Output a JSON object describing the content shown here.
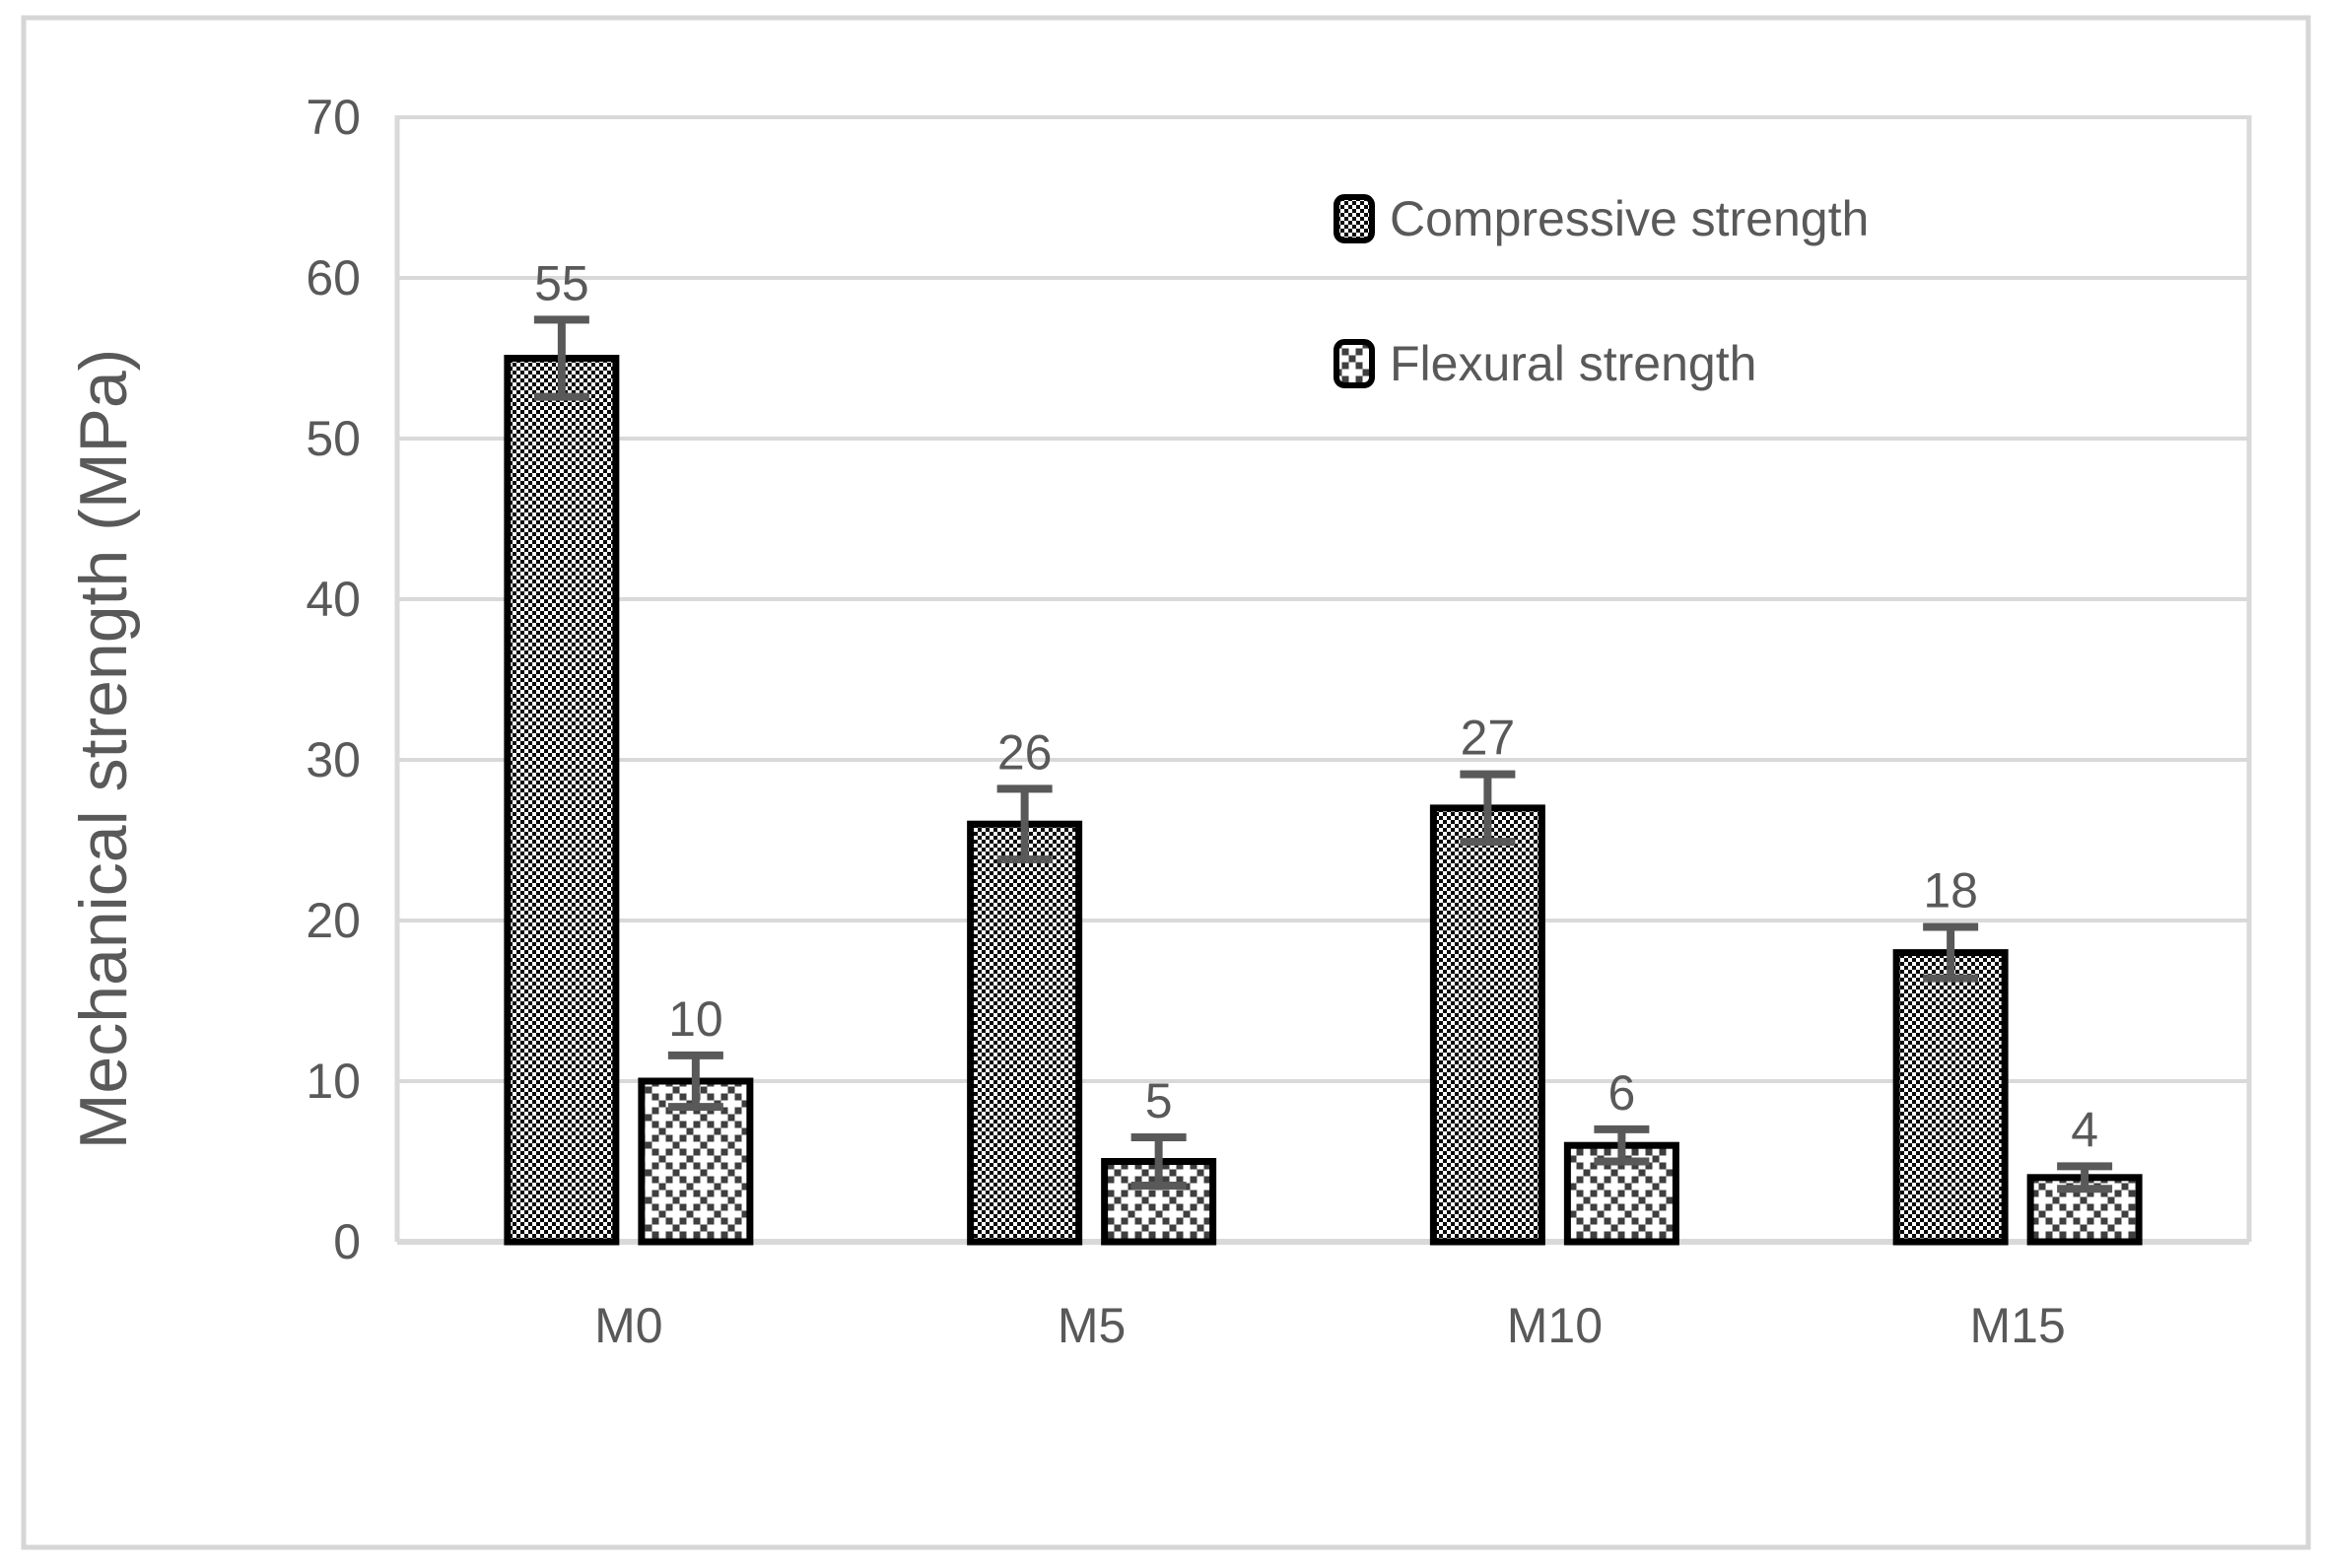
{
  "chart_data": {
    "type": "bar",
    "title": "",
    "xlabel": "",
    "ylabel": "Mechanical strength (MPa)",
    "ylim": [
      0,
      70
    ],
    "ytick_step": 10,
    "yticks": [
      0,
      10,
      20,
      30,
      40,
      50,
      60,
      70
    ],
    "grid": true,
    "legend_position": "top-right",
    "categories": [
      "M0",
      "M5",
      "M10",
      "M15"
    ],
    "series": [
      {
        "name": "Compressive strength",
        "pattern": "checker",
        "values": [
          55,
          26,
          27,
          18
        ],
        "errors": [
          2.4,
          2.2,
          2.1,
          1.6
        ]
      },
      {
        "name": "Flexural strength",
        "pattern": "crosshatch",
        "values": [
          10,
          5,
          6,
          4
        ],
        "errors": [
          1.6,
          1.5,
          1.0,
          0.7
        ]
      }
    ],
    "colors": {
      "text": "#595959",
      "gridline": "#D9D9D9",
      "axis_line": "#D9D9D9",
      "bar_border": "#000000",
      "checker_fill": "#0a0a0a",
      "crosshatch_fill": "#3f3f3f",
      "error_bar": "#595959",
      "frame": "#D6D6D6",
      "background": "#FFFFFF"
    }
  }
}
